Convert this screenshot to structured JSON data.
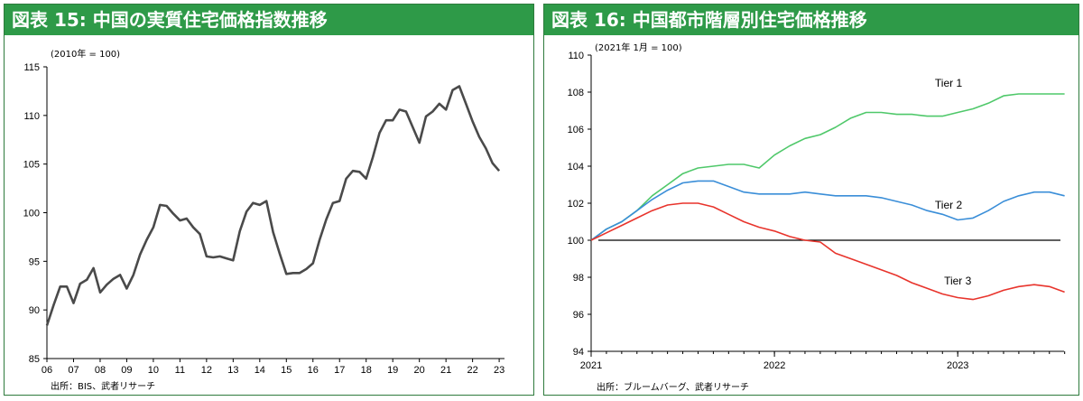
{
  "chart_data": [
    {
      "type": "line",
      "title": "図表 15: 中国の実質住宅価格指数推移",
      "unit_note": "(2010年 = 100)",
      "source": "出所：BIS、武者リサーチ",
      "xlim": [
        2006,
        2023.2
      ],
      "ylim": [
        85,
        115
      ],
      "x_ticks": [
        "06",
        "07",
        "08",
        "09",
        "10",
        "11",
        "12",
        "13",
        "14",
        "15",
        "16",
        "17",
        "18",
        "19",
        "20",
        "21",
        "22",
        "23"
      ],
      "y_ticks": [
        "85",
        "90",
        "95",
        "100",
        "105",
        "110",
        "115"
      ],
      "grid": false,
      "series": [
        {
          "color": "#4a4a4a",
          "x": [
            2006.0,
            2006.25,
            2006.5,
            2006.75,
            2007.0,
            2007.25,
            2007.5,
            2007.75,
            2008.0,
            2008.25,
            2008.5,
            2008.75,
            2009.0,
            2009.25,
            2009.5,
            2009.75,
            2010.0,
            2010.25,
            2010.5,
            2010.75,
            2011.0,
            2011.25,
            2011.5,
            2011.75,
            2012.0,
            2012.25,
            2012.5,
            2012.75,
            2013.0,
            2013.25,
            2013.5,
            2013.75,
            2014.0,
            2014.25,
            2014.5,
            2014.75,
            2015.0,
            2015.25,
            2015.5,
            2015.75,
            2016.0,
            2016.25,
            2016.5,
            2016.75,
            2017.0,
            2017.25,
            2017.5,
            2017.75,
            2018.0,
            2018.25,
            2018.5,
            2018.75,
            2019.0,
            2019.25,
            2019.5,
            2019.75,
            2020.0,
            2020.25,
            2020.5,
            2020.75,
            2021.0,
            2021.25,
            2021.5,
            2021.75,
            2022.0,
            2022.25,
            2022.5,
            2022.75,
            2023.0
          ],
          "y": [
            88.4,
            90.5,
            92.4,
            92.4,
            90.7,
            92.7,
            93.1,
            94.3,
            91.8,
            92.6,
            93.2,
            93.6,
            92.2,
            93.6,
            95.7,
            97.2,
            98.5,
            100.8,
            100.7,
            99.9,
            99.2,
            99.4,
            98.5,
            97.8,
            95.5,
            95.4,
            95.5,
            95.3,
            95.1,
            98.1,
            100.1,
            101.0,
            100.8,
            101.2,
            98.0,
            95.8,
            93.7,
            93.8,
            93.8,
            94.2,
            94.8,
            97.2,
            99.3,
            101.0,
            101.2,
            103.5,
            104.3,
            104.2,
            103.5,
            105.7,
            108.2,
            109.5,
            109.5,
            110.6,
            110.4,
            108.8,
            107.2,
            109.9,
            110.4,
            111.2,
            110.6,
            112.6,
            113.0,
            111.2,
            109.4,
            107.8,
            106.6,
            105.1,
            104.3
          ]
        }
      ]
    },
    {
      "type": "line",
      "title": "図表 16: 中国都市階層別住宅価格推移",
      "unit_note": "(2021年 1月 = 100)",
      "source": "出所：ブルームバーグ、武者リサーチ",
      "xlim": [
        2021.0,
        2023.58
      ],
      "ylim": [
        94,
        110
      ],
      "x_ticks": [
        "2021",
        "2022",
        "2023"
      ],
      "y_ticks": [
        "94",
        "96",
        "98",
        "100",
        "102",
        "104",
        "106",
        "108",
        "110"
      ],
      "grid": false,
      "reference_line": 100,
      "series": [
        {
          "name": "Tier 1",
          "color": "#4fc86a",
          "x": [
            2021.0,
            2021.083,
            2021.167,
            2021.25,
            2021.333,
            2021.417,
            2021.5,
            2021.583,
            2021.667,
            2021.75,
            2021.833,
            2021.917,
            2022.0,
            2022.083,
            2022.167,
            2022.25,
            2022.333,
            2022.417,
            2022.5,
            2022.583,
            2022.667,
            2022.75,
            2022.833,
            2022.917,
            2023.0,
            2023.083,
            2023.167,
            2023.25,
            2023.333,
            2023.417,
            2023.5,
            2023.583
          ],
          "y": [
            100.0,
            100.6,
            101.0,
            101.6,
            102.4,
            103.0,
            103.6,
            103.9,
            104.0,
            104.1,
            104.1,
            103.9,
            104.6,
            105.1,
            105.5,
            105.7,
            106.1,
            106.6,
            106.9,
            106.9,
            106.8,
            106.8,
            106.7,
            106.7,
            106.9,
            107.1,
            107.4,
            107.8,
            107.9,
            107.9,
            107.9,
            107.9
          ]
        },
        {
          "name": "Tier 2",
          "color": "#3a8ed8",
          "x": [
            2021.0,
            2021.083,
            2021.167,
            2021.25,
            2021.333,
            2021.417,
            2021.5,
            2021.583,
            2021.667,
            2021.75,
            2021.833,
            2021.917,
            2022.0,
            2022.083,
            2022.167,
            2022.25,
            2022.333,
            2022.417,
            2022.5,
            2022.583,
            2022.667,
            2022.75,
            2022.833,
            2022.917,
            2023.0,
            2023.083,
            2023.167,
            2023.25,
            2023.333,
            2023.417,
            2023.5,
            2023.583
          ],
          "y": [
            100.0,
            100.6,
            101.0,
            101.6,
            102.2,
            102.7,
            103.1,
            103.2,
            103.2,
            102.9,
            102.6,
            102.5,
            102.5,
            102.5,
            102.6,
            102.5,
            102.4,
            102.4,
            102.4,
            102.3,
            102.1,
            101.9,
            101.6,
            101.4,
            101.1,
            101.2,
            101.6,
            102.1,
            102.4,
            102.6,
            102.6,
            102.4
          ]
        },
        {
          "name": "Tier 3",
          "color": "#e8342c",
          "x": [
            2021.0,
            2021.083,
            2021.167,
            2021.25,
            2021.333,
            2021.417,
            2021.5,
            2021.583,
            2021.667,
            2021.75,
            2021.833,
            2021.917,
            2022.0,
            2022.083,
            2022.167,
            2022.25,
            2022.333,
            2022.417,
            2022.5,
            2022.583,
            2022.667,
            2022.75,
            2022.833,
            2022.917,
            2023.0,
            2023.083,
            2023.167,
            2023.25,
            2023.333,
            2023.417,
            2023.5,
            2023.583
          ],
          "y": [
            100.0,
            100.4,
            100.8,
            101.2,
            101.6,
            101.9,
            102.0,
            102.0,
            101.8,
            101.4,
            101.0,
            100.7,
            100.5,
            100.2,
            100.0,
            99.9,
            99.3,
            99.0,
            98.7,
            98.4,
            98.1,
            97.7,
            97.4,
            97.1,
            96.9,
            96.8,
            97.0,
            97.3,
            97.5,
            97.6,
            97.5,
            97.2
          ]
        }
      ]
    }
  ]
}
